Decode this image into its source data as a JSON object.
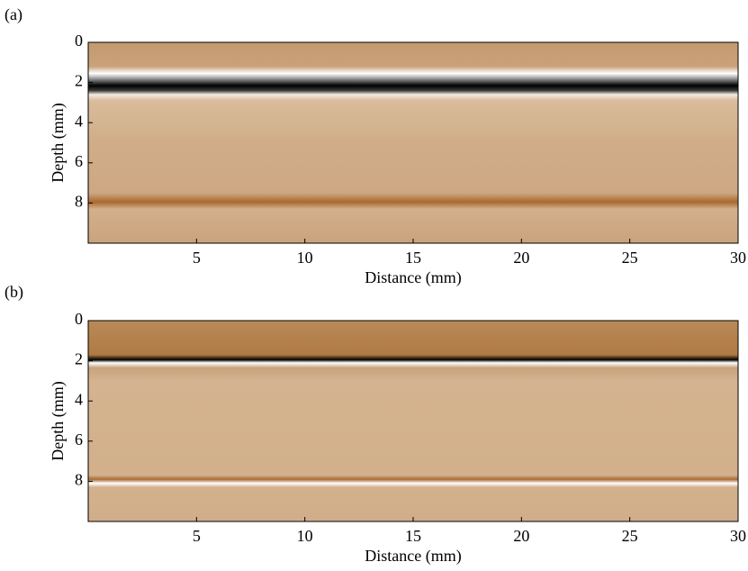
{
  "chart_data": [
    {
      "type": "image",
      "panel_label": "(a)",
      "xlabel": "Distance (mm)",
      "ylabel": "Depth (mm)",
      "xlim": [
        0,
        30
      ],
      "xticks": [
        5,
        10,
        15,
        20,
        25,
        30
      ],
      "ylim": [
        10,
        0
      ],
      "yticks": [
        0,
        2,
        4,
        6,
        8
      ]
    },
    {
      "type": "image",
      "panel_label": "(b)",
      "xlabel": "Distance (mm)",
      "ylabel": "Depth (mm)",
      "xlim": [
        0,
        30
      ],
      "xticks": [
        5,
        10,
        15,
        20,
        25,
        30
      ],
      "ylim": [
        10,
        0
      ],
      "yticks": [
        0,
        2,
        4,
        6,
        8
      ]
    }
  ]
}
